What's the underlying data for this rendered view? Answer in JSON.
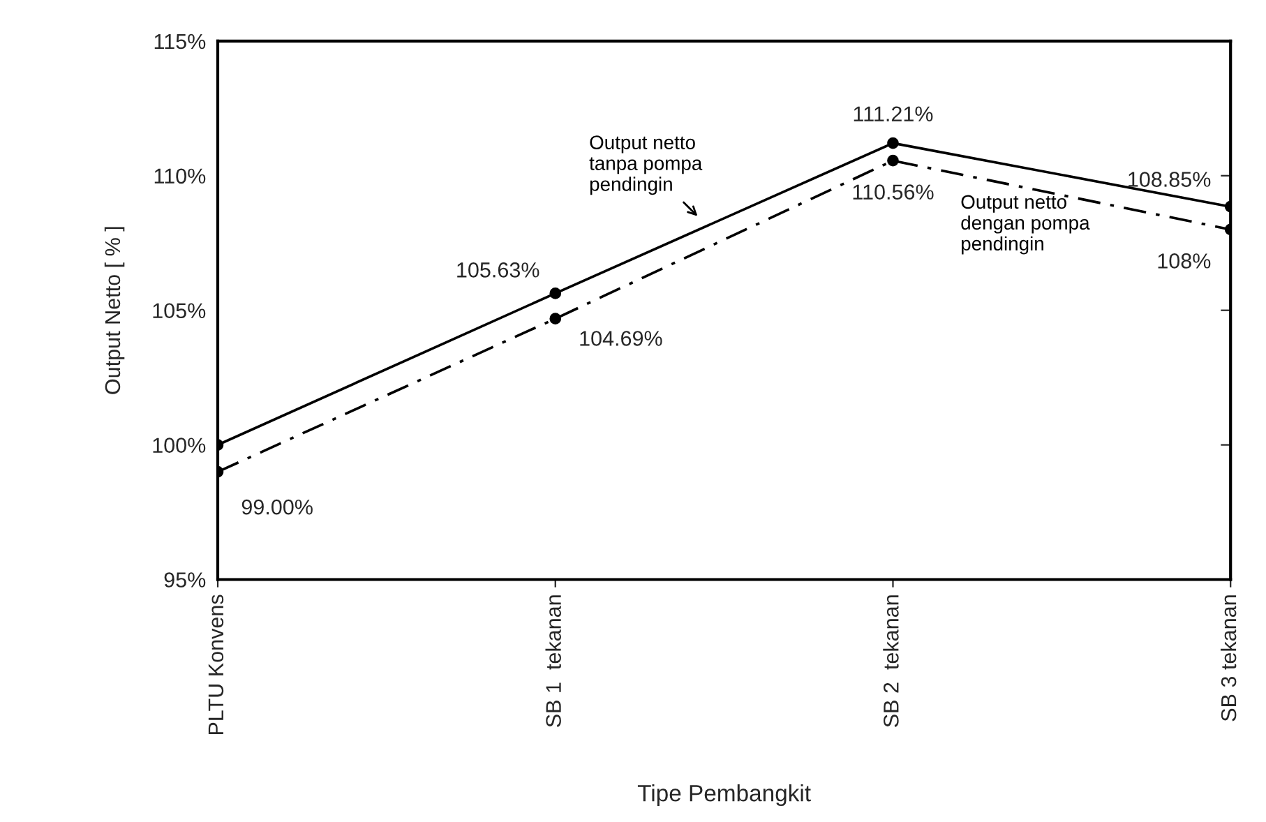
{
  "chart_data": {
    "type": "line",
    "xlabel": "Tipe Pembangkit",
    "ylabel": "Output Netto [ % ]",
    "categories": [
      "PLTU Konvens",
      "SB 1  tekanan",
      "SB 2  tekanan",
      "SB 3 tekanan"
    ],
    "series": [
      {
        "name": "Output netto\ntanpa pompa\npendingin",
        "color": "#000000",
        "line_style": "solid",
        "values": [
          100,
          105.63,
          111.21,
          108.85
        ],
        "value_labels": [
          null,
          "105.63%",
          "111.21%",
          "108.85%"
        ]
      },
      {
        "name": "Output netto\ndengan pompa\npendingin",
        "color": "#000000",
        "line_style": "dashed",
        "values": [
          99.0,
          104.69,
          110.56,
          108
        ],
        "value_labels": [
          "99.00%",
          "104.69%",
          "110.56%",
          "108%"
        ]
      }
    ],
    "ylim": [
      95,
      115
    ],
    "yticks": [
      {
        "value": 95,
        "label": "95%"
      },
      {
        "value": 100,
        "label": "100%"
      },
      {
        "value": 105,
        "label": "105%"
      },
      {
        "value": 110,
        "label": "110%"
      },
      {
        "value": 115,
        "label": "115%"
      }
    ],
    "marker": "circle",
    "grid": false,
    "legend": false
  }
}
